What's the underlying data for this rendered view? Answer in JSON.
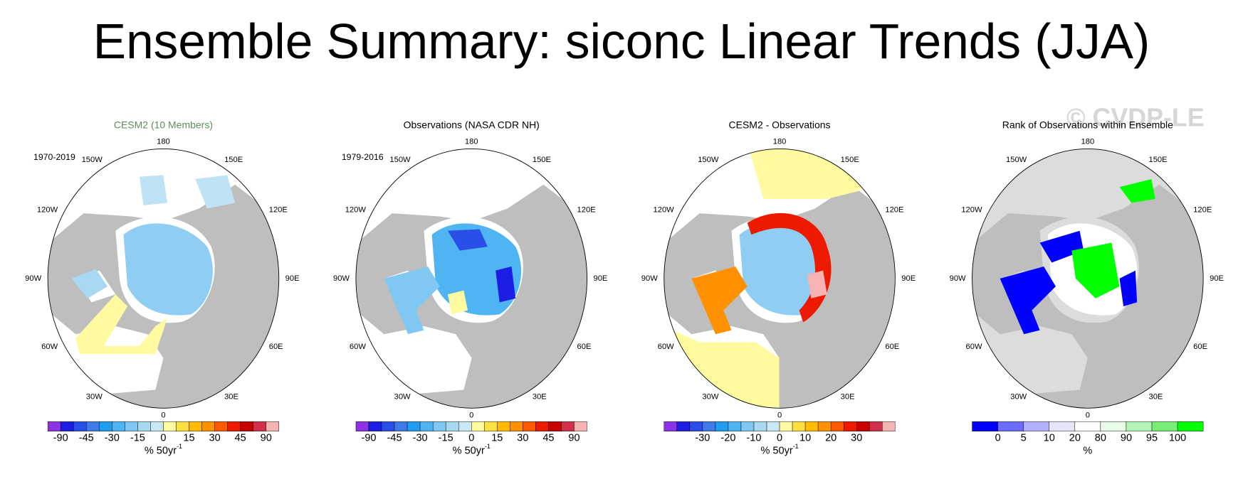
{
  "title": "Ensemble Summary: siconc Linear Trends (JJA)",
  "watermark": "© CVDP-LE",
  "longitude_labels": [
    "180",
    "150E",
    "120E",
    "90E",
    "60E",
    "30E",
    "0",
    "30W",
    "60W",
    "90W",
    "120W",
    "150W"
  ],
  "panels": [
    {
      "title": "CESM2 (10 Members)",
      "title_color": "#5b8f5b",
      "period": "1970-2019",
      "colorbar": {
        "colors": [
          "#8c33e6",
          "#1d1de6",
          "#2a4ee8",
          "#3f7ae8",
          "#1f9df0",
          "#4fb4f2",
          "#80c8f2",
          "#a8d8f2",
          "#c8e8f5",
          "#fffaa0",
          "#ffe040",
          "#ffbb00",
          "#ff9000",
          "#ff5a00",
          "#ee1a00",
          "#c80000",
          "#d2304a",
          "#f7b3b3"
        ],
        "labels": [
          -90,
          null,
          -45,
          null,
          -30,
          null,
          -15,
          null,
          0,
          null,
          15,
          null,
          30,
          null,
          45,
          null,
          90
        ],
        "unit": "% 50yr",
        "unit_superscript": "-1"
      }
    },
    {
      "title": "Observations (NASA CDR NH)",
      "title_color": "#000000",
      "period": "1979-2016",
      "colorbar": {
        "colors": [
          "#8c33e6",
          "#1d1de6",
          "#2a4ee8",
          "#3f7ae8",
          "#1f9df0",
          "#4fb4f2",
          "#80c8f2",
          "#a8d8f2",
          "#c8e8f5",
          "#fffaa0",
          "#ffe040",
          "#ffbb00",
          "#ff9000",
          "#ff5a00",
          "#ee1a00",
          "#c80000",
          "#d2304a",
          "#f7b3b3"
        ],
        "labels": [
          -90,
          null,
          -45,
          null,
          -30,
          null,
          -15,
          null,
          0,
          null,
          15,
          null,
          30,
          null,
          45,
          null,
          90
        ],
        "unit": "% 50yr",
        "unit_superscript": "-1"
      }
    },
    {
      "title": "CESM2 - Observations",
      "title_color": "#000000",
      "colorbar": {
        "colors": [
          "#8c33e6",
          "#1d1de6",
          "#2a4ee8",
          "#3f7ae8",
          "#1f9df0",
          "#4fb4f2",
          "#80c8f2",
          "#a8d8f2",
          "#c8e8f5",
          "#fffaa0",
          "#ffe040",
          "#ffbb00",
          "#ff9000",
          "#ff5a00",
          "#ee1a00",
          "#c80000",
          "#d2304a",
          "#f7b3b3"
        ],
        "labels": [
          null,
          null,
          -30,
          null,
          -20,
          null,
          -10,
          null,
          0,
          null,
          10,
          null,
          20,
          null,
          30,
          null,
          null
        ],
        "unit": "% 50yr",
        "unit_superscript": "-1"
      }
    },
    {
      "title": "Rank of Observations within Ensemble",
      "title_color": "#000000",
      "colorbar": {
        "colors": [
          "#0000ff",
          "#6b6bff",
          "#b0b0ff",
          "#e6e6fa",
          "#ffffff",
          "#e6ffe6",
          "#b4f5b4",
          "#78ee78",
          "#00ff00"
        ],
        "labels": [
          0,
          5,
          10,
          20,
          80,
          90,
          95,
          100
        ],
        "unit": "%"
      }
    }
  ]
}
